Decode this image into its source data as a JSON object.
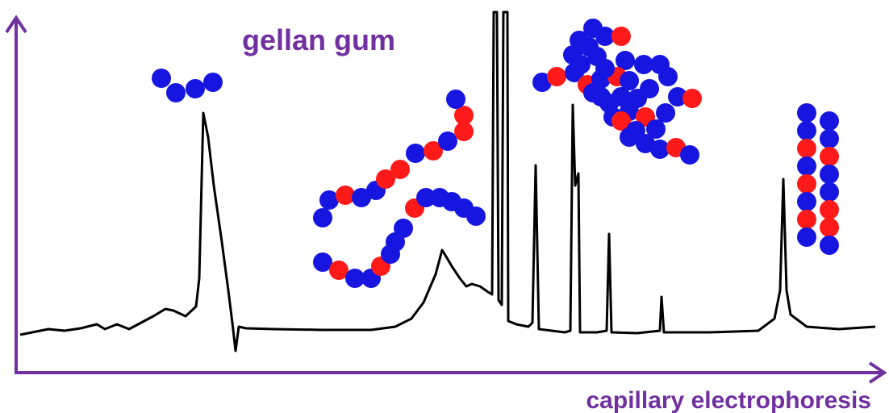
{
  "title": "gellan gum",
  "x_axis_label": "capillary electrophoresis"
}
